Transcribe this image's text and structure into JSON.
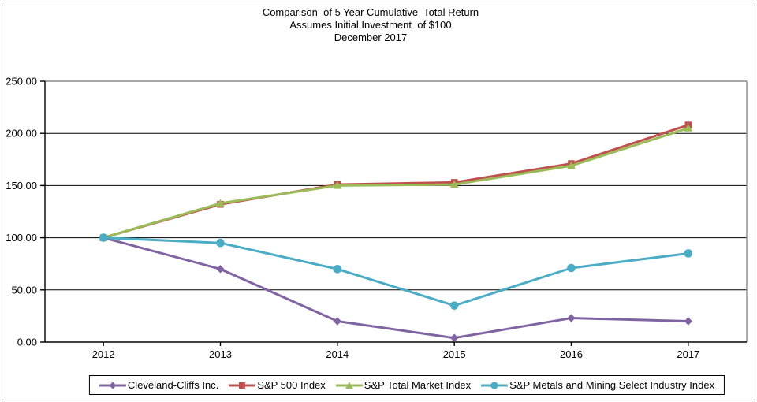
{
  "chart": {
    "title_lines": [
      "Comparison  of 5 Year Cumulative  Total Return",
      "Assumes Initial Investment  of $100",
      "December 2017"
    ]
  },
  "chart_data": {
    "type": "line",
    "title": "Comparison of 5 Year Cumulative Total Return",
    "subtitle": "Assumes Initial Investment of $100",
    "date_label": "December 2017",
    "categories": [
      "2012",
      "2013",
      "2014",
      "2015",
      "2016",
      "2017"
    ],
    "series": [
      {
        "name": "Cleveland-Cliffs Inc.",
        "color": "#8064A2",
        "marker": "diamond",
        "values": [
          100,
          70,
          20,
          4,
          23,
          20
        ]
      },
      {
        "name": "S&P 500 Index",
        "color": "#C0504D",
        "marker": "square",
        "values": [
          100,
          132,
          151,
          153,
          171,
          208
        ]
      },
      {
        "name": "S&P Total Market Index",
        "color": "#9BBB59",
        "marker": "triangle",
        "values": [
          100,
          133,
          150,
          151,
          169,
          205
        ]
      },
      {
        "name": "S&P Metals and Mining Select Industry Index",
        "color": "#4BACC6",
        "marker": "circle",
        "values": [
          100,
          95,
          70,
          35,
          71,
          85
        ]
      }
    ],
    "xlabel": "",
    "ylabel": "",
    "ylim": [
      0,
      250
    ],
    "ytick_step": 50,
    "ytick_decimals": 2,
    "grid": true,
    "gridline_color": "#000000",
    "plot_border_color": "#8c8c8c",
    "axis_color": "#000000",
    "legend_position": "bottom"
  }
}
